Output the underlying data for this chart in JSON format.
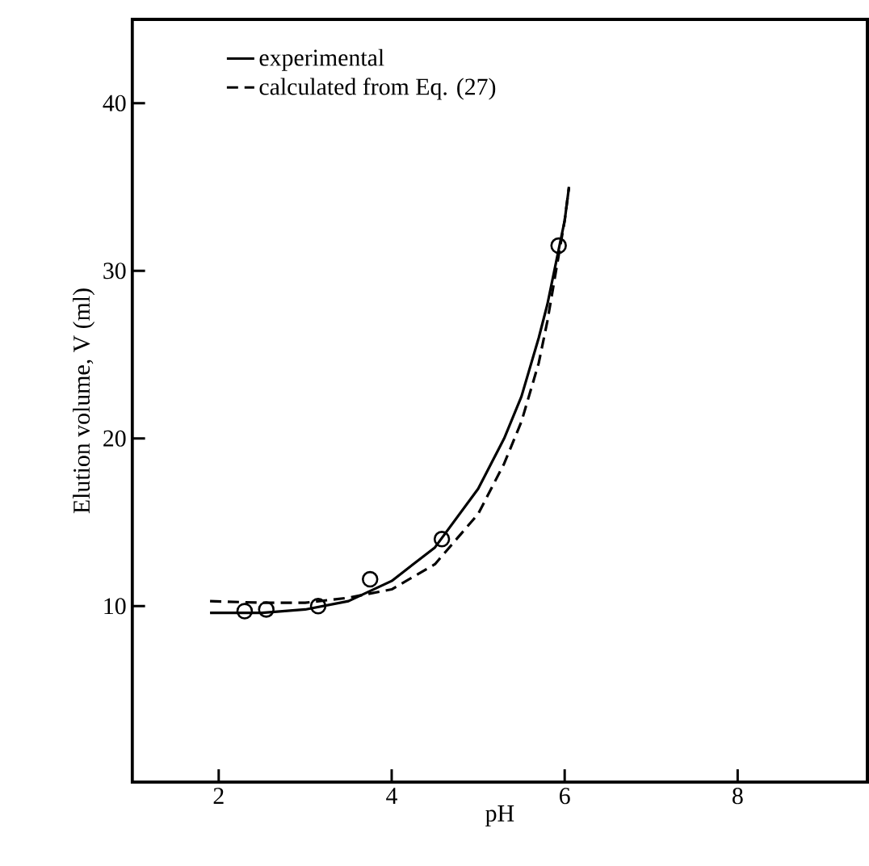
{
  "chart_data": {
    "type": "line",
    "xlabel": "pH",
    "ylabel": "Elution volume, V (ml)",
    "xlim": [
      1,
      9.5
    ],
    "ylim": [
      -0.5,
      45
    ],
    "xticks": [
      2,
      4,
      6,
      8
    ],
    "yticks": [
      10,
      20,
      30,
      40
    ],
    "legend": "top left",
    "grid": false,
    "series": [
      {
        "name": "experimental",
        "color": "#000000",
        "line_style": "solid",
        "marker": "none",
        "x": [
          1.9,
          2.5,
          3.0,
          3.5,
          4.0,
          4.5,
          5.0,
          5.3,
          5.5,
          5.7,
          5.8,
          5.9,
          6.0,
          6.05
        ],
        "values": [
          9.6,
          9.6,
          9.8,
          10.3,
          11.5,
          13.5,
          17.0,
          20.0,
          22.5,
          26.0,
          28.0,
          30.5,
          33.0,
          35.0
        ]
      },
      {
        "name": "calculated from Eq. (27)",
        "color": "#000000",
        "line_style": "dashed",
        "marker": "none",
        "x": [
          1.9,
          2.5,
          3.0,
          3.5,
          4.0,
          4.5,
          5.0,
          5.3,
          5.5,
          5.7,
          5.8,
          5.9,
          6.0,
          6.05
        ],
        "values": [
          10.3,
          10.2,
          10.2,
          10.5,
          11.0,
          12.5,
          15.5,
          18.5,
          21.0,
          24.5,
          27.0,
          30.0,
          33.0,
          35.0
        ]
      },
      {
        "type": "scatter",
        "color": "#000000",
        "marker": "circle",
        "x": [
          2.3,
          2.55,
          3.15,
          3.75,
          4.58,
          5.93
        ],
        "values": [
          9.7,
          9.8,
          10.0,
          11.6,
          14.0,
          31.5
        ]
      }
    ]
  }
}
